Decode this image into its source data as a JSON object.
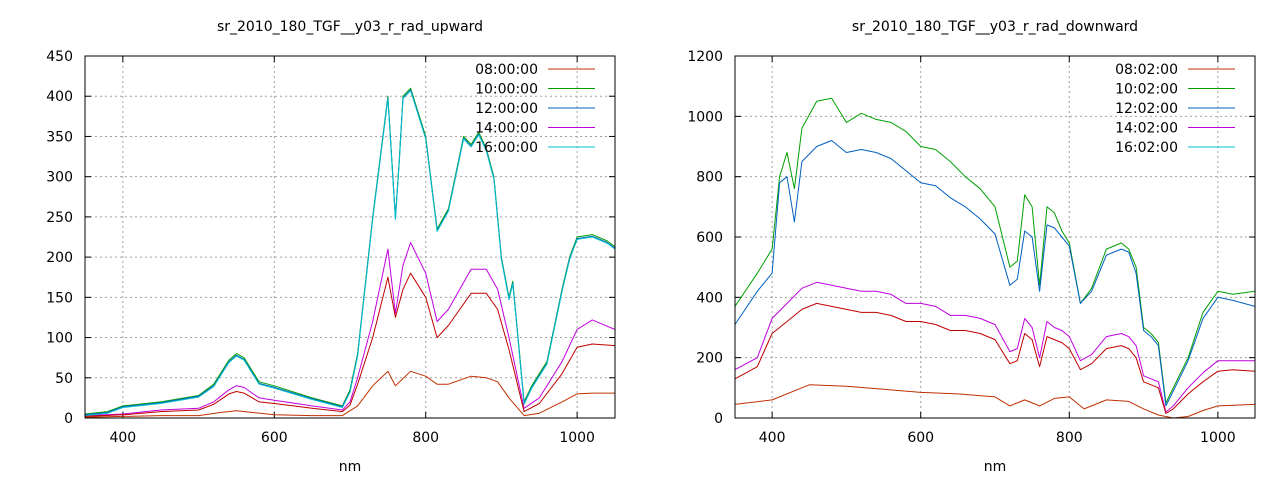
{
  "chart_data": [
    {
      "type": "line",
      "title": "sr_2010_180_TGF__y03_r_rad_upward",
      "xlabel": "nm",
      "ylabel": "",
      "xlim": [
        350,
        1050
      ],
      "ylim": [
        0,
        450
      ],
      "xticks": [
        400,
        600,
        800,
        1000
      ],
      "yticks": [
        0,
        50,
        100,
        150,
        200,
        250,
        300,
        350,
        400,
        450
      ],
      "grid": true,
      "legend_position": "top-right",
      "series": [
        {
          "name": "08:00:00",
          "color": "#c03000",
          "x": [
            350,
            400,
            450,
            500,
            530,
            550,
            570,
            600,
            650,
            690,
            710,
            730,
            750,
            760,
            780,
            800,
            815,
            830,
            860,
            880,
            895,
            910,
            930,
            950,
            980,
            1000,
            1020,
            1050
          ],
          "y": [
            1,
            2,
            3,
            3,
            7,
            9,
            7,
            4,
            3,
            3,
            15,
            40,
            58,
            40,
            58,
            52,
            42,
            42,
            52,
            50,
            45,
            25,
            3,
            6,
            20,
            30,
            31,
            31
          ]
        },
        {
          "name": "10:00:00",
          "color": "#00a000",
          "x": [
            350,
            380,
            400,
            450,
            500,
            520,
            540,
            550,
            560,
            580,
            600,
            650,
            690,
            700,
            710,
            730,
            750,
            760,
            765,
            770,
            780,
            800,
            815,
            830,
            850,
            860,
            870,
            880,
            890,
            900,
            910,
            915,
            930,
            940,
            960,
            980,
            990,
            1000,
            1020,
            1040,
            1050
          ],
          "y": [
            5,
            8,
            15,
            20,
            28,
            42,
            72,
            80,
            75,
            45,
            40,
            25,
            15,
            35,
            80,
            250,
            400,
            250,
            320,
            400,
            410,
            350,
            235,
            260,
            350,
            340,
            355,
            335,
            300,
            200,
            150,
            170,
            20,
            40,
            70,
            160,
            200,
            225,
            228,
            220,
            213
          ]
        },
        {
          "name": "12:00:00",
          "color": "#0060c0",
          "x": [
            350,
            380,
            400,
            450,
            500,
            520,
            540,
            550,
            560,
            580,
            600,
            650,
            690,
            700,
            710,
            730,
            750,
            760,
            765,
            770,
            780,
            800,
            815,
            830,
            850,
            860,
            870,
            880,
            890,
            900,
            910,
            915,
            930,
            940,
            960,
            980,
            990,
            1000,
            1020,
            1040,
            1050
          ],
          "y": [
            4,
            7,
            14,
            19,
            27,
            40,
            70,
            78,
            73,
            43,
            38,
            24,
            14,
            33,
            78,
            248,
            398,
            248,
            318,
            398,
            408,
            348,
            233,
            258,
            348,
            338,
            353,
            333,
            298,
            198,
            148,
            168,
            18,
            38,
            68,
            158,
            198,
            223,
            226,
            218,
            211
          ]
        },
        {
          "name": "14:00:00",
          "color": "#c000e0",
          "x": [
            350,
            400,
            450,
            500,
            520,
            540,
            550,
            560,
            580,
            600,
            650,
            690,
            700,
            710,
            730,
            750,
            760,
            770,
            780,
            800,
            815,
            830,
            860,
            880,
            895,
            910,
            930,
            950,
            980,
            1000,
            1020,
            1050
          ],
          "y": [
            3,
            5,
            10,
            12,
            20,
            35,
            40,
            38,
            25,
            22,
            15,
            10,
            20,
            50,
            120,
            210,
            130,
            190,
            218,
            180,
            120,
            135,
            185,
            185,
            160,
            100,
            12,
            25,
            70,
            110,
            122,
            110
          ]
        },
        {
          "name": "16:00:00",
          "color": "#00c0d0",
          "x": [
            350,
            380,
            400,
            450,
            500,
            520,
            540,
            550,
            560,
            580,
            600,
            650,
            690,
            700,
            710,
            730,
            750,
            760,
            765,
            770,
            780,
            800,
            815,
            830,
            850,
            860,
            870,
            880,
            890,
            900,
            910,
            915,
            930,
            940,
            960,
            980,
            990,
            1000,
            1020,
            1040,
            1050
          ],
          "y": [
            3,
            6,
            13,
            18,
            26,
            39,
            69,
            77,
            72,
            42,
            37,
            23,
            13,
            32,
            77,
            247,
            397,
            247,
            317,
            397,
            407,
            347,
            232,
            257,
            347,
            337,
            352,
            332,
            297,
            197,
            147,
            167,
            17,
            37,
            67,
            157,
            197,
            222,
            225,
            217,
            210
          ]
        },
        {
          "name": "",
          "color": "#c00000",
          "x": [
            350,
            400,
            450,
            500,
            520,
            540,
            550,
            560,
            580,
            600,
            650,
            690,
            700,
            710,
            730,
            750,
            760,
            770,
            780,
            800,
            815,
            830,
            860,
            880,
            895,
            910,
            930,
            950,
            980,
            1000,
            1020,
            1050
          ],
          "y": [
            2,
            4,
            8,
            10,
            17,
            30,
            33,
            31,
            20,
            18,
            12,
            8,
            16,
            42,
            100,
            175,
            125,
            160,
            180,
            150,
            100,
            115,
            155,
            155,
            135,
            85,
            8,
            18,
            55,
            88,
            92,
            90
          ]
        }
      ]
    },
    {
      "type": "line",
      "title": "sr_2010_180_TGF__y03_r_rad_downward",
      "xlabel": "nm",
      "ylabel": "",
      "xlim": [
        350,
        1050
      ],
      "ylim": [
        0,
        1200
      ],
      "xticks": [
        400,
        600,
        800,
        1000
      ],
      "yticks": [
        0,
        200,
        400,
        600,
        800,
        1000,
        1200
      ],
      "grid": true,
      "legend_position": "top-right",
      "series": [
        {
          "name": "08:02:00",
          "color": "#c03000",
          "x": [
            350,
            400,
            450,
            500,
            550,
            600,
            650,
            700,
            720,
            740,
            760,
            780,
            800,
            820,
            850,
            880,
            900,
            920,
            940,
            960,
            980,
            1000,
            1050
          ],
          "y": [
            45,
            60,
            110,
            105,
            95,
            85,
            80,
            70,
            40,
            60,
            40,
            65,
            70,
            30,
            60,
            55,
            30,
            10,
            0,
            5,
            25,
            40,
            45
          ]
        },
        {
          "name": "10:02:00",
          "color": "#00a000",
          "x": [
            350,
            380,
            400,
            410,
            420,
            430,
            440,
            460,
            480,
            500,
            520,
            540,
            560,
            580,
            600,
            620,
            640,
            660,
            680,
            700,
            720,
            730,
            740,
            750,
            760,
            770,
            780,
            790,
            800,
            815,
            830,
            850,
            870,
            880,
            890,
            900,
            910,
            920,
            930,
            940,
            960,
            980,
            1000,
            1020,
            1050
          ],
          "y": [
            370,
            480,
            560,
            800,
            880,
            760,
            960,
            1050,
            1060,
            980,
            1010,
            990,
            980,
            950,
            900,
            890,
            850,
            800,
            760,
            700,
            500,
            520,
            740,
            700,
            440,
            700,
            680,
            620,
            580,
            380,
            430,
            560,
            580,
            560,
            500,
            300,
            280,
            250,
            50,
            100,
            200,
            350,
            420,
            410,
            420
          ]
        },
        {
          "name": "12:02:00",
          "color": "#0060c0",
          "x": [
            350,
            380,
            400,
            410,
            420,
            430,
            440,
            460,
            480,
            500,
            520,
            540,
            560,
            580,
            600,
            620,
            640,
            660,
            680,
            700,
            720,
            730,
            740,
            750,
            760,
            770,
            780,
            790,
            800,
            815,
            830,
            850,
            870,
            880,
            890,
            900,
            910,
            920,
            930,
            940,
            960,
            980,
            1000,
            1020,
            1050
          ],
          "y": [
            310,
            420,
            480,
            780,
            800,
            650,
            850,
            900,
            920,
            880,
            890,
            880,
            860,
            820,
            780,
            770,
            730,
            700,
            660,
            610,
            440,
            460,
            620,
            600,
            420,
            640,
            630,
            600,
            570,
            380,
            420,
            540,
            560,
            550,
            480,
            290,
            270,
            240,
            40,
            90,
            190,
            330,
            400,
            390,
            370
          ]
        },
        {
          "name": "14:02:00",
          "color": "#c000e0",
          "x": [
            350,
            380,
            400,
            420,
            440,
            460,
            480,
            500,
            520,
            540,
            560,
            580,
            600,
            620,
            640,
            660,
            680,
            700,
            720,
            730,
            740,
            750,
            760,
            770,
            780,
            790,
            800,
            815,
            830,
            850,
            870,
            880,
            890,
            900,
            910,
            920,
            930,
            940,
            960,
            980,
            1000,
            1020,
            1050
          ],
          "y": [
            160,
            200,
            330,
            380,
            430,
            450,
            440,
            430,
            420,
            420,
            410,
            380,
            380,
            370,
            340,
            340,
            330,
            310,
            220,
            230,
            330,
            300,
            200,
            320,
            300,
            290,
            270,
            190,
            210,
            270,
            280,
            270,
            240,
            140,
            130,
            120,
            20,
            40,
            100,
            150,
            190,
            190,
            190
          ]
        },
        {
          "name": "16:02:00",
          "color": "#00c0d0",
          "x": [],
          "y": []
        },
        {
          "name": "",
          "color": "#c00000",
          "x": [
            350,
            380,
            400,
            420,
            440,
            460,
            480,
            500,
            520,
            540,
            560,
            580,
            600,
            620,
            640,
            660,
            680,
            700,
            720,
            730,
            740,
            750,
            760,
            770,
            780,
            790,
            800,
            815,
            830,
            850,
            870,
            880,
            890,
            900,
            910,
            920,
            930,
            940,
            960,
            980,
            1000,
            1020,
            1050
          ],
          "y": [
            130,
            170,
            280,
            320,
            360,
            380,
            370,
            360,
            350,
            350,
            340,
            320,
            320,
            310,
            290,
            290,
            280,
            260,
            180,
            190,
            280,
            260,
            170,
            270,
            260,
            250,
            230,
            160,
            180,
            230,
            240,
            230,
            200,
            120,
            110,
            100,
            15,
            30,
            80,
            120,
            155,
            160,
            155
          ]
        }
      ]
    }
  ]
}
